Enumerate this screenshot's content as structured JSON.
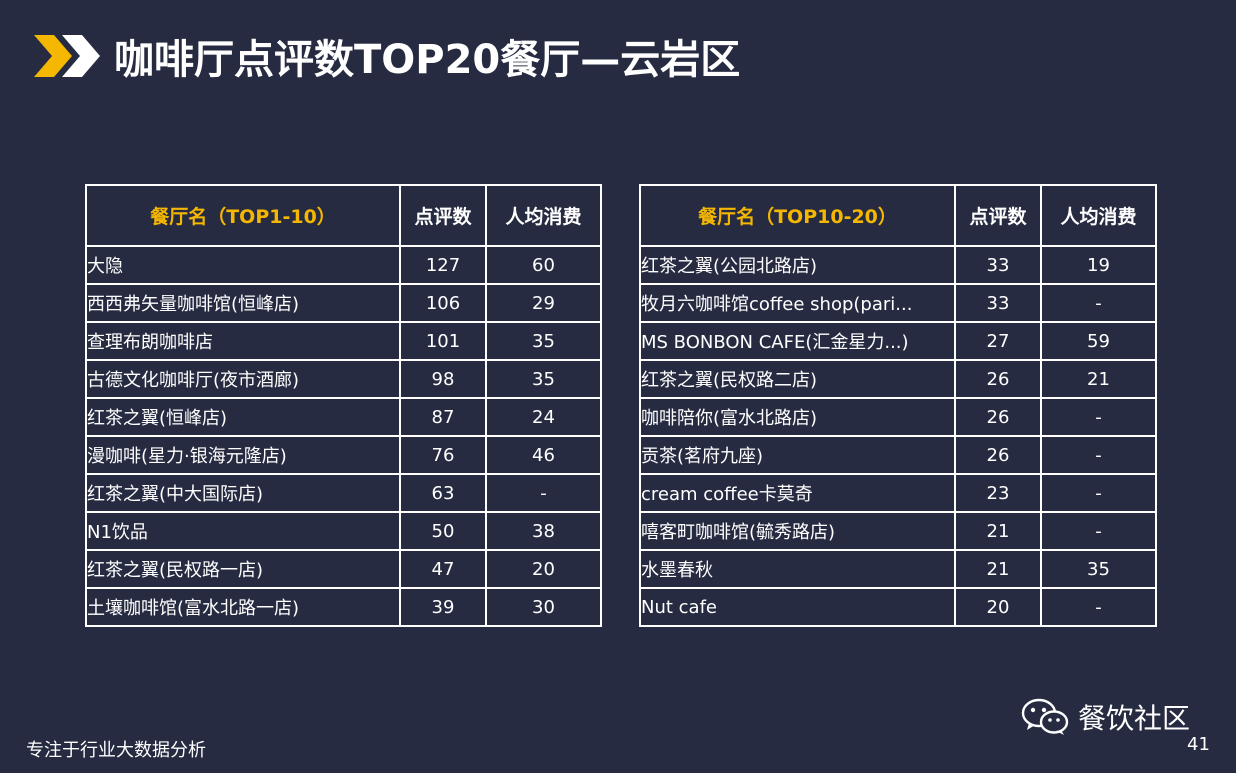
{
  "slide": {
    "title": "咖啡厅点评数TOP20餐厅—云岩区",
    "footer_text": "专注于行业大数据分析",
    "brand_name": "餐饮社区",
    "page_number": "41",
    "accent_color": "#f5b700",
    "background_color": "#262b41"
  },
  "table_left": {
    "headers": [
      "餐厅名（TOP1-10）",
      "点评数",
      "人均消费"
    ],
    "rows": [
      [
        "大隐",
        "127",
        "60"
      ],
      [
        "西西弗矢量咖啡馆(恒峰店)",
        "106",
        "29"
      ],
      [
        "查理布朗咖啡店",
        "101",
        "35"
      ],
      [
        "古德文化咖啡厅(夜市酒廊)",
        "98",
        "35"
      ],
      [
        "红茶之翼(恒峰店)",
        "87",
        "24"
      ],
      [
        "漫咖啡(星力·银海元隆店)",
        "76",
        "46"
      ],
      [
        "红茶之翼(中大国际店)",
        "63",
        "-"
      ],
      [
        "N1饮品",
        "50",
        "38"
      ],
      [
        "红茶之翼(民权路一店)",
        "47",
        "20"
      ],
      [
        "土壤咖啡馆(富水北路一店)",
        "39",
        "30"
      ]
    ]
  },
  "table_right": {
    "headers": [
      "餐厅名（TOP10-20）",
      "点评数",
      "人均消费"
    ],
    "rows": [
      [
        "红茶之翼(公园北路店)",
        "33",
        "19"
      ],
      [
        "牧月六咖啡馆coffee shop(pari...",
        "33",
        "-"
      ],
      [
        "MS BONBON CAFE(汇金星力...)",
        "27",
        "59"
      ],
      [
        "红茶之翼(民权路二店)",
        "26",
        "21"
      ],
      [
        "咖啡陪你(富水北路店)",
        "26",
        "-"
      ],
      [
        "贡茶(茗府九座)",
        "26",
        "-"
      ],
      [
        "cream coffee卡莫奇",
        "23",
        "-"
      ],
      [
        "嘻客町咖啡馆(毓秀路店)",
        "21",
        "-"
      ],
      [
        "水墨春秋",
        "21",
        "35"
      ],
      [
        "Nut cafe",
        "20",
        "-"
      ]
    ]
  },
  "icons": {
    "title_decoration": "double-chevron-icon",
    "brand_logo": "wechat-icon"
  }
}
